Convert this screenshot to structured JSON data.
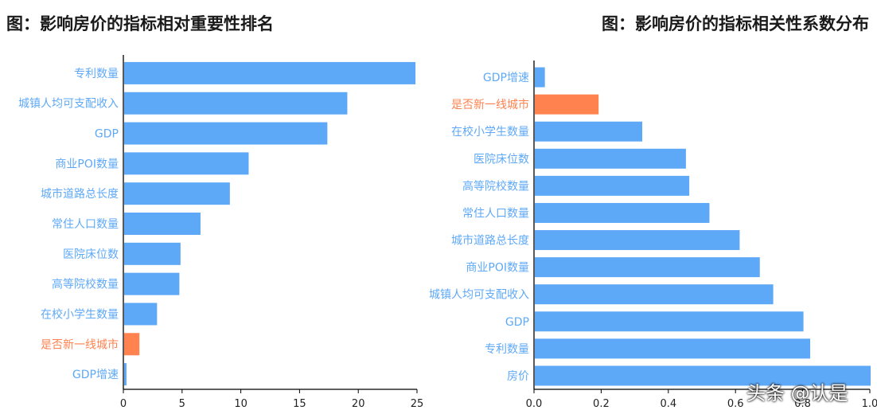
{
  "titles": {
    "left": "图：影响房价的指标相对重要性排名",
    "right": "图：影响房价的指标相关性系数分布"
  },
  "colors": {
    "normal": "#5EA9F7",
    "highlight": "#FF824F",
    "axis": "#000000"
  },
  "watermark": "头条 @认是",
  "chart_data": [
    {
      "type": "bar",
      "orientation": "horizontal",
      "title": "图：影响房价的指标相对重要性排名",
      "categories": [
        "专利数量",
        "城镇人均可支配收入",
        "GDP",
        "商业POI数量",
        "城市道路总长度",
        "常住人口数量",
        "医院床位数",
        "高等院校数量",
        "在校小学生数量",
        "是否新一线城市",
        "GDP增速"
      ],
      "values": [
        24.8,
        19.0,
        17.3,
        10.6,
        9.0,
        6.5,
        4.8,
        4.7,
        2.8,
        1.3,
        0.2
      ],
      "highlight": [
        "是否新一线城市"
      ],
      "xlim": [
        0,
        25
      ],
      "xticks": [
        0,
        5,
        10,
        15,
        20,
        25
      ],
      "xtick_labels": [
        "0",
        "5",
        "10",
        "15",
        "20",
        "25"
      ]
    },
    {
      "type": "bar",
      "orientation": "horizontal",
      "title": "图：影响房价的指标相关性系数分布",
      "categories": [
        "GDP增速",
        "是否新一线城市",
        "在校小学生数量",
        "医院床位数",
        "高等院校数量",
        "常住人口数量",
        "城市道路总长度",
        "商业POI数量",
        "城镇人均可支配收入",
        "GDP",
        "专利数量",
        "房价"
      ],
      "values": [
        0.03,
        0.19,
        0.32,
        0.45,
        0.46,
        0.52,
        0.61,
        0.67,
        0.71,
        0.8,
        0.82,
        1.0
      ],
      "highlight": [
        "是否新一线城市"
      ],
      "xlim": [
        0,
        1
      ],
      "xticks": [
        0,
        0.2,
        0.4,
        0.6,
        0.8,
        1.0
      ],
      "xtick_labels": [
        "0.0",
        "0.2",
        "0.4",
        "0.6",
        "0.8",
        "1.0"
      ]
    }
  ]
}
